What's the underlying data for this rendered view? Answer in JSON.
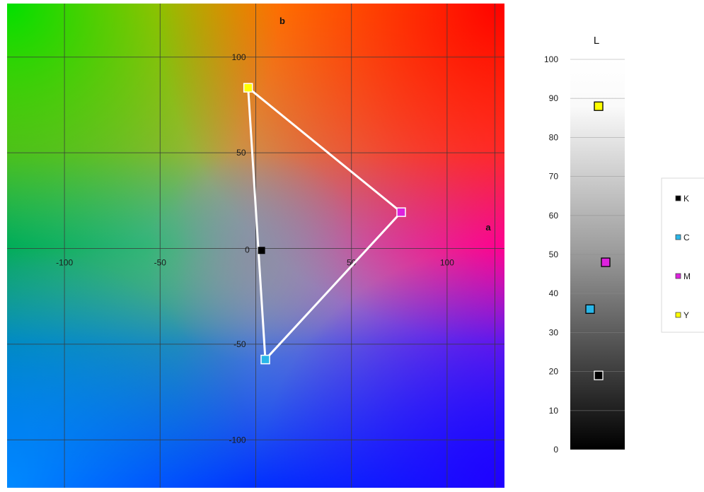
{
  "chart_data": [
    {
      "type": "scatter",
      "title": "",
      "xlabel": "a",
      "ylabel": "b",
      "xlim": [
        -130,
        130
      ],
      "ylim": [
        -125,
        128
      ],
      "x_ticks": [
        -100,
        -50,
        0,
        50,
        100
      ],
      "y_ticks": [
        -100,
        -50,
        0,
        50,
        100
      ],
      "x_tick_labels": [
        "-100",
        "-50",
        "0",
        "50",
        "100"
      ],
      "y_tick_labels": [
        "-100",
        "-50",
        "0",
        "50",
        "100"
      ],
      "grid": true,
      "background": "CIELAB a*b* color plane",
      "series": [
        {
          "name": "K",
          "x": 3,
          "y": -1,
          "color": "#000000"
        },
        {
          "name": "C",
          "x": 5,
          "y": -58,
          "color": "#29b6e8"
        },
        {
          "name": "M",
          "x": 76,
          "y": 19,
          "color": "#dd22dd"
        },
        {
          "name": "Y",
          "x": -4,
          "y": 84,
          "color": "#ffff00"
        }
      ],
      "polygon": {
        "vertices": [
          "Y",
          "M",
          "C"
        ],
        "color": "#ffffff"
      }
    },
    {
      "type": "scatter",
      "title": "",
      "ylabel": "L",
      "ylim": [
        0,
        100
      ],
      "y_ticks": [
        0,
        10,
        20,
        30,
        40,
        50,
        60,
        70,
        80,
        90,
        100
      ],
      "y_tick_labels": [
        "0",
        "10",
        "20",
        "30",
        "40",
        "50",
        "60",
        "70",
        "80",
        "90",
        "100"
      ],
      "grid": true,
      "background": "lightness gradient",
      "series": [
        {
          "name": "K",
          "y": 19,
          "color": "#000000"
        },
        {
          "name": "C",
          "y": 36,
          "color": "#29b6e8"
        },
        {
          "name": "M",
          "y": 48,
          "color": "#dd22dd"
        },
        {
          "name": "Y",
          "y": 88,
          "color": "#ffff00"
        }
      ]
    }
  ],
  "legend": {
    "placement": "right",
    "items": [
      {
        "label": "K",
        "color": "#000000"
      },
      {
        "label": "C",
        "color": "#29b6e8"
      },
      {
        "label": "M",
        "color": "#dd22dd"
      },
      {
        "label": "Y",
        "color": "#ffff00"
      }
    ]
  }
}
